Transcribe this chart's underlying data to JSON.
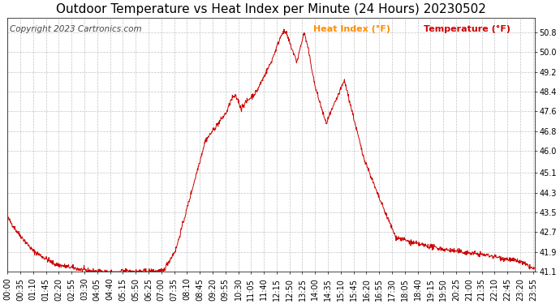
{
  "title": "Outdoor Temperature vs Heat Index per Minute (24 Hours) 20230502",
  "copyright": "Copyright 2023 Cartronics.com",
  "legend_heat": "Heat Index (°F)",
  "legend_temp": "Temperature (°F)",
  "legend_heat_color": "#ff8c00",
  "legend_temp_color": "#cc0000",
  "line_color": "#cc0000",
  "background_color": "#ffffff",
  "grid_color": "#aaaaaa",
  "title_color": "#000000",
  "copyright_color": "#444444",
  "ylim_min": 41.1,
  "ylim_max": 51.4,
  "yticks": [
    41.1,
    41.9,
    42.7,
    43.5,
    44.3,
    45.1,
    46.0,
    46.8,
    47.6,
    48.4,
    49.2,
    50.0,
    50.8
  ],
  "num_minutes": 1440,
  "title_fontsize": 11,
  "axis_fontsize": 7,
  "copyright_fontsize": 7.5,
  "legend_fontsize": 8,
  "xtick_step": 35
}
